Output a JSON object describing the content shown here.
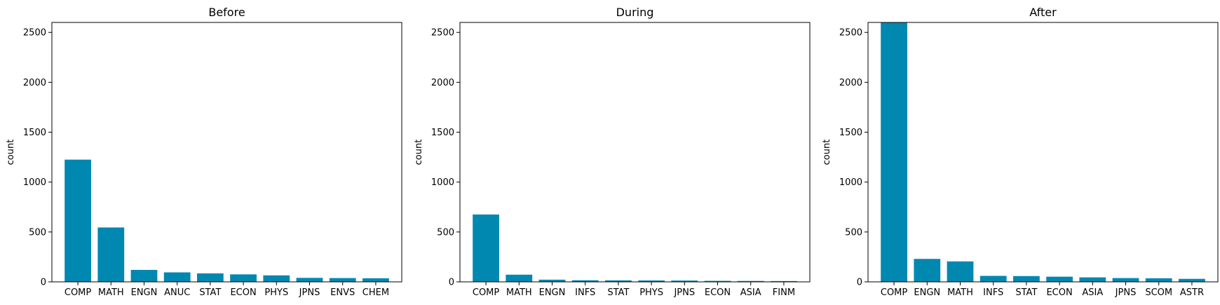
{
  "chart_data": [
    {
      "type": "bar",
      "title": "Before",
      "ylabel": "count",
      "xlabel": "",
      "ylim": [
        0,
        2600
      ],
      "yticks": [
        0,
        500,
        1000,
        1500,
        2000,
        2500
      ],
      "bar_color": "#0088b0",
      "categories": [
        "COMP",
        "MATH",
        "ENGN",
        "ANUC",
        "STAT",
        "ECON",
        "PHYS",
        "JPNS",
        "ENVS",
        "CHEM"
      ],
      "values": [
        1225,
        545,
        120,
        95,
        85,
        75,
        65,
        40,
        38,
        36
      ]
    },
    {
      "type": "bar",
      "title": "During",
      "ylabel": "count",
      "xlabel": "",
      "ylim": [
        0,
        2600
      ],
      "yticks": [
        0,
        500,
        1000,
        1500,
        2000,
        2500
      ],
      "bar_color": "#0088b0",
      "categories": [
        "COMP",
        "MATH",
        "ENGN",
        "INFS",
        "STAT",
        "PHYS",
        "JPNS",
        "ECON",
        "ASIA",
        "FINM"
      ],
      "values": [
        675,
        72,
        22,
        16,
        15,
        14,
        13,
        10,
        9,
        8
      ]
    },
    {
      "type": "bar",
      "title": "After",
      "ylabel": "count",
      "xlabel": "",
      "ylim": [
        0,
        2600
      ],
      "yticks": [
        0,
        500,
        1000,
        1500,
        2000,
        2500
      ],
      "bar_color": "#0088b0",
      "categories": [
        "COMP",
        "ENGN",
        "MATH",
        "INFS",
        "STAT",
        "ECON",
        "ASIA",
        "JPNS",
        "SCOM",
        "ASTR"
      ],
      "values": [
        2600,
        230,
        205,
        60,
        58,
        52,
        45,
        38,
        36,
        30
      ]
    }
  ]
}
